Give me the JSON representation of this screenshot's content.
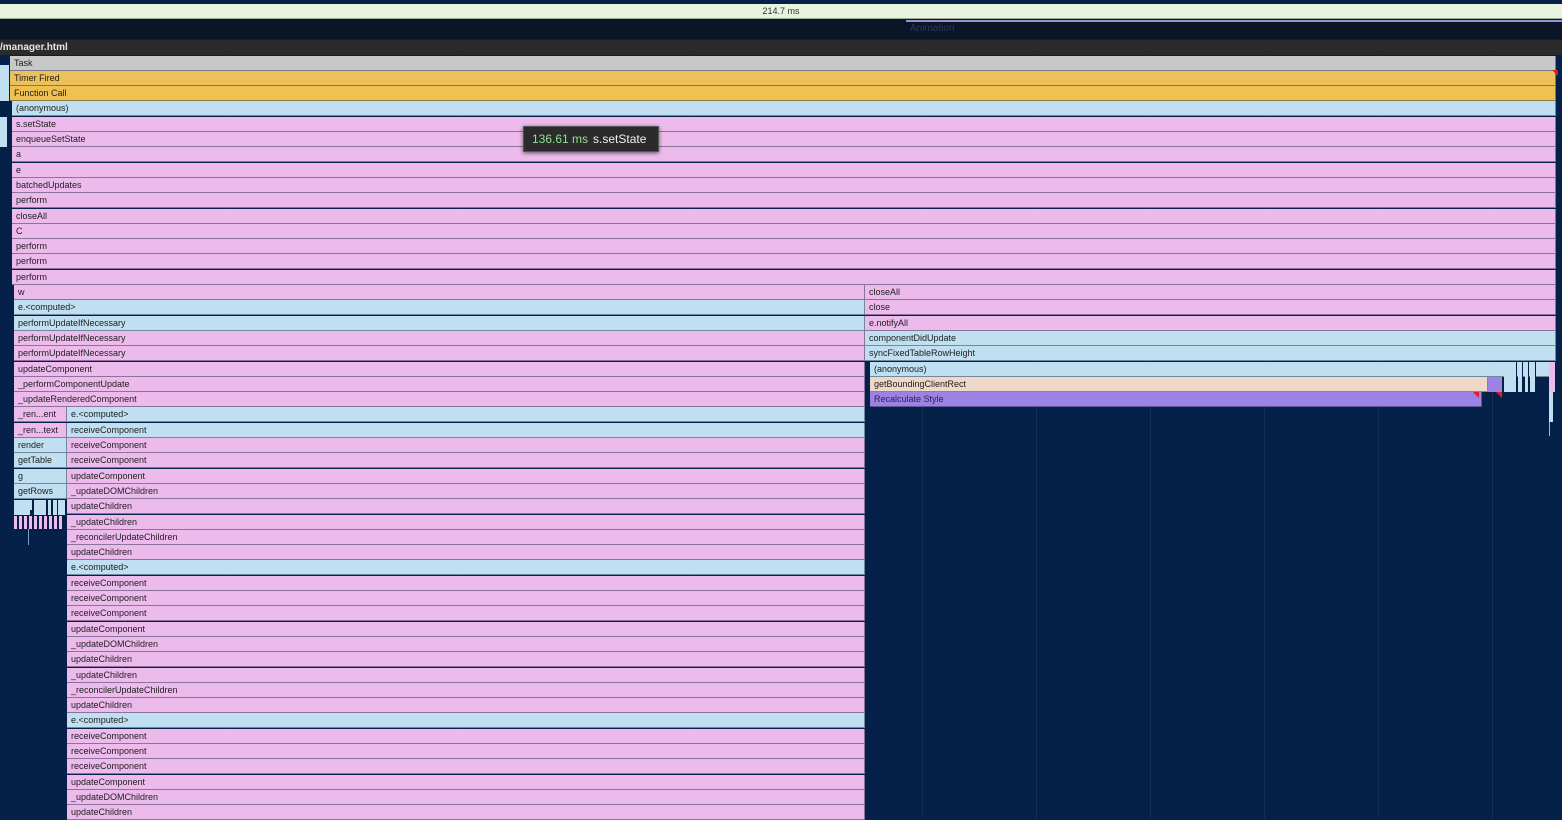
{
  "ruler": {
    "duration_label": "214.7 ms"
  },
  "interactions": {
    "track_label": "Animation"
  },
  "thread": {
    "title": "/manager.html"
  },
  "tooltip": {
    "duration": "136.61 ms",
    "name": "s.setState"
  },
  "flame": {
    "common": [
      "Task",
      "Timer Fired",
      "Function Call",
      "(anonymous)",
      "s.setState",
      "enqueueSetState",
      "a",
      "e",
      "batchedUpdates",
      "perform",
      "closeAll",
      "C",
      "perform",
      "perform",
      "perform"
    ],
    "left_branch": [
      "w",
      "e.<computed>",
      "performUpdateIfNecessary",
      "performUpdateIfNecessary",
      "performUpdateIfNecessary",
      "updateComponent",
      "_performComponentUpdate",
      "_updateRenderedComponent"
    ],
    "narrow_column": [
      "_ren...ent",
      "_ren...text",
      "render",
      "getTable",
      "g",
      "getRows"
    ],
    "deep_column": [
      "e.<computed>",
      "receiveComponent",
      "receiveComponent",
      "receiveComponent",
      "updateComponent",
      "_updateDOMChildren",
      "updateChildren",
      "_updateChildren",
      "_reconcilerUpdateChildren",
      "updateChildren",
      "e.<computed>",
      "receiveComponent",
      "receiveComponent",
      "receiveComponent",
      "updateComponent",
      "_updateDOMChildren",
      "updateChildren",
      "_updateChildren",
      "_reconcilerUpdateChildren",
      "updateChildren",
      "e.<computed>",
      "receiveComponent",
      "receiveComponent",
      "receiveComponent",
      "updateComponent",
      "_updateDOMChildren",
      "updateChildren"
    ],
    "right_branch": [
      "closeAll",
      "close",
      "e.notifyAll",
      "componentDidUpdate",
      "syncFixedTableRowHeight",
      "(anonymous)",
      "getBoundingClientRect",
      "Recalculate Style"
    ]
  },
  "colors": {
    "background": "#05214a",
    "task": "#c8c8c8",
    "scripting_yellow": "#ecc05a",
    "js_blue": "#c0dff0",
    "js_pink": "#ecbbec",
    "layout_peach": "#eed8c8",
    "rendering_purple": "#9c82e2",
    "long_task_red": "#e21f1f",
    "tooltip_duration_green": "#8fe28f"
  }
}
